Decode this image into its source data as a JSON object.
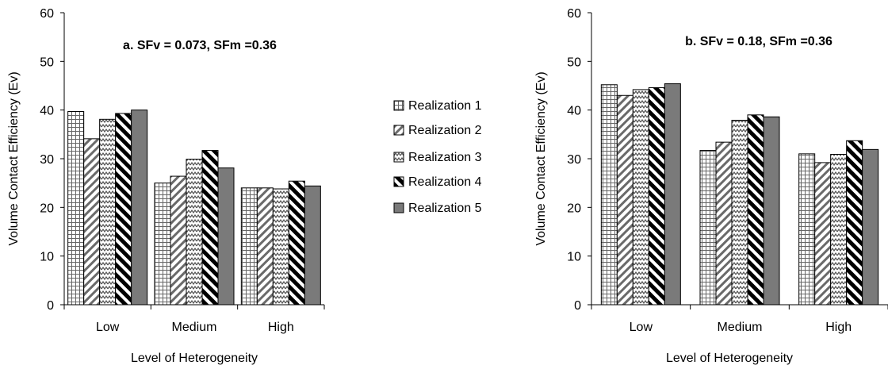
{
  "chart_data": [
    {
      "type": "bar",
      "title": "a. SFv = 0.073, SFm =0.36",
      "xlabel": "Level of Heterogeneity",
      "ylabel": "Volume Contact Efficiency (Ev)",
      "categories": [
        "Low",
        "Medium",
        "High"
      ],
      "ylim": [
        0,
        60
      ],
      "yticks": [
        0,
        10,
        20,
        30,
        40,
        50,
        60
      ],
      "grid": false,
      "legend": "right",
      "series": [
        {
          "name": "Realization 1",
          "values": [
            39.7,
            25.0,
            24.0
          ]
        },
        {
          "name": "Realization 2",
          "values": [
            34.1,
            26.4,
            24.0
          ]
        },
        {
          "name": "Realization 3",
          "values": [
            38.1,
            29.9,
            23.8
          ]
        },
        {
          "name": "Realization 4",
          "values": [
            39.3,
            31.7,
            25.4
          ]
        },
        {
          "name": "Realization 5",
          "values": [
            40.0,
            28.1,
            24.4
          ]
        }
      ]
    },
    {
      "type": "bar",
      "title": "b. SFv = 0.18, SFm =0.36",
      "xlabel": "Level of Heterogeneity",
      "ylabel": "Volume Contact Efficiency (Ev)",
      "categories": [
        "Low",
        "Medium",
        "High"
      ],
      "ylim": [
        0,
        60
      ],
      "yticks": [
        0,
        10,
        20,
        30,
        40,
        50,
        60
      ],
      "grid": false,
      "series": [
        {
          "name": "Realization 1",
          "values": [
            45.2,
            31.7,
            31.0
          ]
        },
        {
          "name": "Realization 2",
          "values": [
            43.0,
            33.4,
            29.2
          ]
        },
        {
          "name": "Realization 3",
          "values": [
            44.2,
            37.9,
            30.9
          ]
        },
        {
          "name": "Realization 4",
          "values": [
            44.6,
            39.0,
            33.7
          ]
        },
        {
          "name": "Realization 5",
          "values": [
            45.4,
            38.6,
            31.9
          ]
        }
      ]
    }
  ],
  "legend": {
    "items": [
      "Realization 1",
      "Realization 2",
      "Realization 3",
      "Realization 4",
      "Realization 5"
    ]
  }
}
